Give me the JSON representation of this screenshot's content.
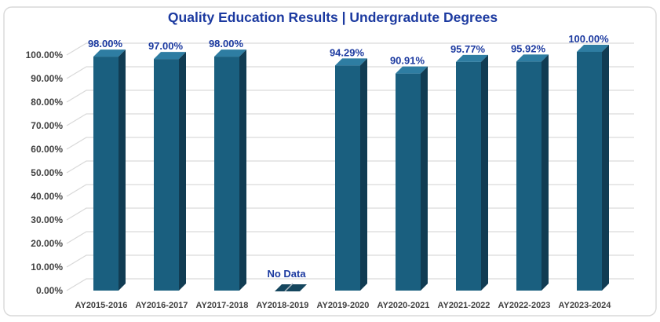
{
  "chart_data": {
    "type": "bar",
    "style": "3d-column",
    "title": "Quality Education Results | Undergradute Degrees",
    "categories": [
      "AY2015-2016",
      "AY2016-2017",
      "AY2017-2018",
      "AY2018-2019",
      "AY2019-2020",
      "AY2020-2021",
      "AY2021-2022",
      "AY2022-2023",
      "AY2023-2024"
    ],
    "values": [
      98.0,
      97.0,
      98.0,
      null,
      94.29,
      90.91,
      95.77,
      95.92,
      100.0
    ],
    "value_labels": [
      "98.00%",
      "97.00%",
      "98.00%",
      "No Data",
      "94.29%",
      "90.91%",
      "95.77%",
      "95.92%",
      "100.00%"
    ],
    "no_data_label": "No Data",
    "y_ticks": [
      "0.00%",
      "10.00%",
      "20.00%",
      "30.00%",
      "40.00%",
      "50.00%",
      "60.00%",
      "70.00%",
      "80.00%",
      "90.00%",
      "100.00%"
    ],
    "ylim": [
      0,
      100
    ],
    "y_tick_step": 10,
    "grid": true,
    "legend": "none",
    "xlabel": "",
    "ylabel": "",
    "colors": {
      "bar_front": "#1A5F7F",
      "bar_top": "#2E7DA2",
      "bar_side": "#113C53",
      "no_data_base": "#15465E",
      "value_label": "#1C3AA0",
      "title": "#1C3AA0",
      "axis_text": "#404040",
      "gridline": "#D9D9D9",
      "chart_border": "#D9D9D9",
      "background": "#FFFFFF"
    }
  }
}
